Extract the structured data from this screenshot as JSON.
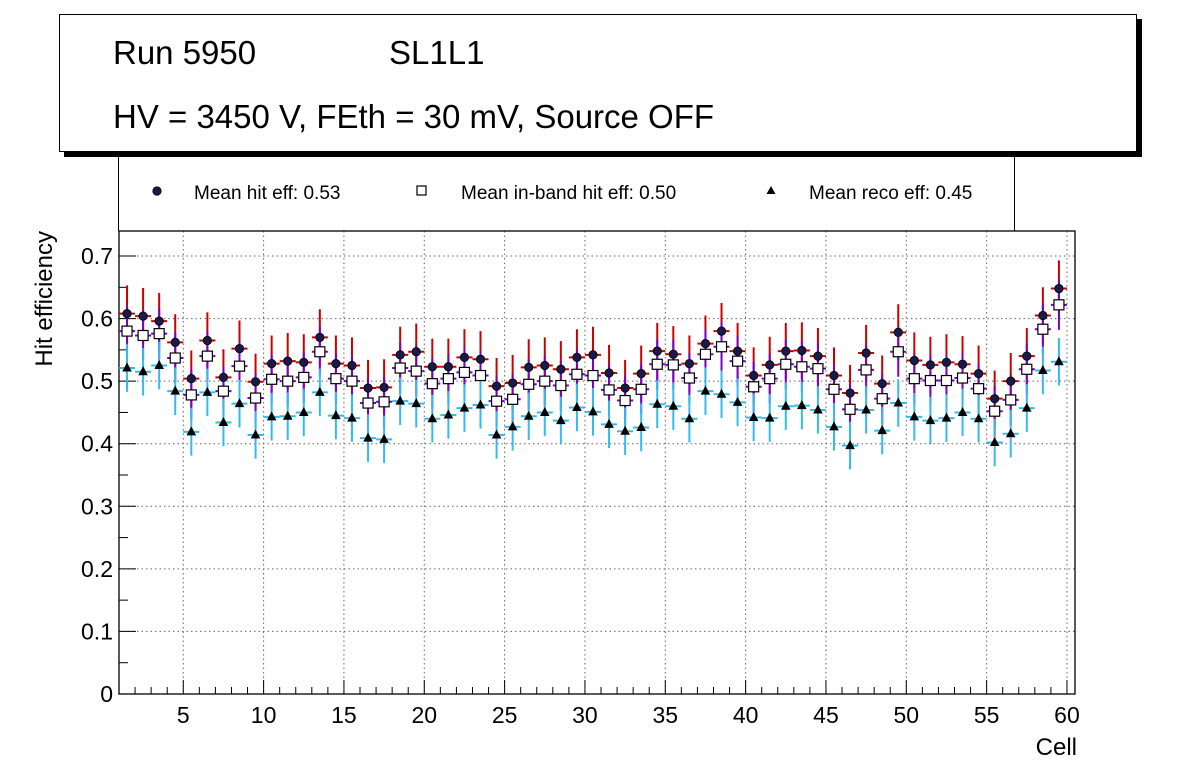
{
  "title": {
    "run_label": "Run 5950",
    "layer_label": "SL1L1",
    "conditions": "HV = 3450 V, FEth = 30 mV, Source OFF"
  },
  "legend": {
    "hit": "Mean hit  eff: 0.53",
    "inband": "Mean in-band hit eff: 0.50",
    "reco": "Mean reco eff: 0.45"
  },
  "colors": {
    "hit_marker": "#1a1a4a",
    "hit_error": "#cc0000",
    "inband_error": "#7a00cc",
    "reco_marker": "#000000",
    "reco_error": "#33bbee",
    "grid": "#666666"
  },
  "chart_data": {
    "type": "scatter",
    "xlabel": "Cell",
    "ylabel": "Hit efficiency",
    "xlim": [
      1,
      60.5
    ],
    "ylim": [
      0,
      0.74
    ],
    "xticks": [
      5,
      10,
      15,
      20,
      25,
      30,
      35,
      40,
      45,
      50,
      55,
      60
    ],
    "yticks": [
      0,
      0.1,
      0.2,
      0.3,
      0.4,
      0.5,
      0.6,
      0.7
    ],
    "ytick_labels": [
      "0",
      "0.1",
      "0.2",
      "0.3",
      "0.4",
      "0.5",
      "0.6",
      "0.7"
    ],
    "grid": true,
    "x": [
      1.5,
      2.5,
      3.5,
      4.5,
      5.5,
      6.5,
      7.5,
      8.5,
      9.5,
      10.5,
      11.5,
      12.5,
      13.5,
      14.5,
      15.5,
      16.5,
      17.5,
      18.5,
      19.5,
      20.5,
      21.5,
      22.5,
      23.5,
      24.5,
      25.5,
      26.5,
      27.5,
      28.5,
      29.5,
      30.5,
      31.5,
      32.5,
      33.5,
      34.5,
      35.5,
      36.5,
      37.5,
      38.5,
      39.5,
      40.5,
      41.5,
      42.5,
      43.5,
      44.5,
      45.5,
      46.5,
      47.5,
      48.5,
      49.5,
      50.5,
      51.5,
      52.5,
      53.5,
      54.5,
      55.5,
      56.5,
      57.5,
      58.5,
      59.5
    ],
    "series": [
      {
        "name": "Mean hit  eff: 0.53",
        "marker": "circle",
        "error": 0.045,
        "values": [
          0.608,
          0.604,
          0.596,
          0.562,
          0.504,
          0.565,
          0.506,
          0.552,
          0.499,
          0.528,
          0.532,
          0.53,
          0.57,
          0.528,
          0.525,
          0.489,
          0.49,
          0.542,
          0.547,
          0.523,
          0.523,
          0.538,
          0.535,
          0.492,
          0.497,
          0.522,
          0.525,
          0.519,
          0.538,
          0.542,
          0.513,
          0.489,
          0.512,
          0.548,
          0.543,
          0.528,
          0.56,
          0.58,
          0.548,
          0.509,
          0.526,
          0.548,
          0.549,
          0.54,
          0.509,
          0.481,
          0.545,
          0.496,
          0.578,
          0.533,
          0.526,
          0.53,
          0.527,
          0.512,
          0.472,
          0.5,
          0.54,
          0.605,
          0.648
        ]
      },
      {
        "name": "Mean in-band hit eff: 0.50",
        "marker": "open-square",
        "error": 0.04,
        "values": [
          0.58,
          0.573,
          0.576,
          0.537,
          0.478,
          0.54,
          0.484,
          0.524,
          0.473,
          0.503,
          0.5,
          0.506,
          0.547,
          0.504,
          0.5,
          0.465,
          0.467,
          0.521,
          0.516,
          0.496,
          0.504,
          0.514,
          0.509,
          0.468,
          0.471,
          0.495,
          0.5,
          0.493,
          0.511,
          0.509,
          0.486,
          0.469,
          0.487,
          0.527,
          0.526,
          0.505,
          0.543,
          0.555,
          0.532,
          0.491,
          0.504,
          0.527,
          0.523,
          0.52,
          0.487,
          0.455,
          0.518,
          0.472,
          0.547,
          0.504,
          0.501,
          0.501,
          0.505,
          0.488,
          0.452,
          0.47,
          0.519,
          0.583,
          0.622
        ]
      },
      {
        "name": "Mean reco eff: 0.45",
        "marker": "triangle",
        "error": 0.038,
        "values": [
          0.521,
          0.515,
          0.525,
          0.484,
          0.419,
          0.482,
          0.434,
          0.464,
          0.414,
          0.443,
          0.444,
          0.45,
          0.482,
          0.445,
          0.441,
          0.409,
          0.407,
          0.468,
          0.464,
          0.44,
          0.446,
          0.457,
          0.462,
          0.414,
          0.427,
          0.444,
          0.45,
          0.437,
          0.458,
          0.451,
          0.431,
          0.42,
          0.426,
          0.463,
          0.46,
          0.44,
          0.484,
          0.479,
          0.466,
          0.442,
          0.441,
          0.46,
          0.461,
          0.454,
          0.427,
          0.397,
          0.454,
          0.421,
          0.465,
          0.443,
          0.437,
          0.441,
          0.45,
          0.44,
          0.402,
          0.416,
          0.457,
          0.517,
          0.531
        ]
      }
    ]
  }
}
